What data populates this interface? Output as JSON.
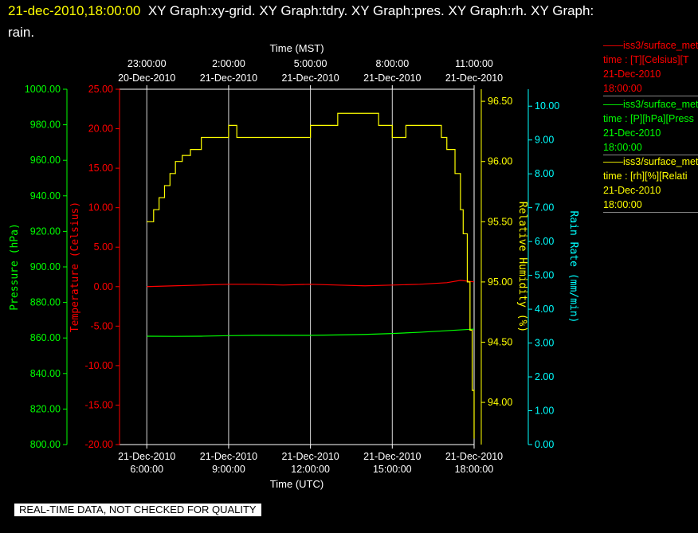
{
  "header": {
    "timestamp": "21-dec-2010,18:00:00",
    "graph_names": "XY Graph:xy-grid.  XY Graph:tdry.  XY Graph:pres.  XY Graph:rh.  XY Graph:",
    "graph_names_cont": "rain."
  },
  "legend": [
    {
      "line1": "iss3/surface_met",
      "line2": "time : [T][Celsius][T",
      "line3": "21-Dec-2010",
      "line4": "18:00:00",
      "color": "#ff0000"
    },
    {
      "line1": "iss3/surface_met",
      "line2": "time : [P][hPa][Press",
      "line3": "21-Dec-2010",
      "line4": "18:00:00",
      "color": "#00ff00"
    },
    {
      "line1": "iss3/surface_met",
      "line2": "time : [rh][%][Relati",
      "line3": "21-Dec-2010",
      "line4": "18:00:00",
      "color": "#ffff00"
    }
  ],
  "quality_note": "REAL-TIME DATA, NOT CHECKED FOR QUALITY",
  "colors": {
    "background": "#000000",
    "grid": "#ffffff",
    "temperature": "#ff0000",
    "pressure": "#00ff00",
    "humidity": "#ffff00",
    "rain": "#00ffff",
    "header_time": "#ffff00"
  },
  "chart_data": {
    "type": "line",
    "grid": true,
    "x_bottom": {
      "label": "Time (UTC)",
      "range": [
        "2010-12-21 05:00",
        "2010-12-21 18:00"
      ],
      "ticks": [
        {
          "date": "21-Dec-2010",
          "time": "6:00:00"
        },
        {
          "date": "21-Dec-2010",
          "time": "9:00:00"
        },
        {
          "date": "21-Dec-2010",
          "time": "12:00:00"
        },
        {
          "date": "21-Dec-2010",
          "time": "15:00:00"
        },
        {
          "date": "21-Dec-2010",
          "time": "18:00:00"
        }
      ]
    },
    "x_top": {
      "label": "Time (MST)",
      "ticks": [
        {
          "time": "23:00:00",
          "date": "20-Dec-2010"
        },
        {
          "time": "2:00:00",
          "date": "21-Dec-2010"
        },
        {
          "time": "5:00:00",
          "date": "21-Dec-2010"
        },
        {
          "time": "8:00:00",
          "date": "21-Dec-2010"
        },
        {
          "time": "11:00:00",
          "date": "21-Dec-2010"
        }
      ]
    },
    "axes": {
      "pressure": {
        "label": "Pressure (hPa)",
        "range": [
          800,
          1000
        ],
        "ticks": [
          "800.00",
          "820.00",
          "840.00",
          "860.00",
          "880.00",
          "900.00",
          "920.00",
          "940.00",
          "960.00",
          "980.00",
          "1000.00"
        ]
      },
      "temperature": {
        "label": "Temperature (Celsius)",
        "range": [
          -20,
          25
        ],
        "ticks": [
          "-20.00",
          "-15.00",
          "-10.00",
          "-5.00",
          "0.00",
          "5.00",
          "10.00",
          "15.00",
          "20.00",
          "25.00"
        ]
      },
      "humidity": {
        "label": "Relative Humidity (%)",
        "range": [
          93.65,
          96.6
        ],
        "ticks": [
          "94.00",
          "94.50",
          "95.00",
          "95.50",
          "96.00",
          "96.50"
        ]
      },
      "rain": {
        "label": "Rain Rate (mm/min)",
        "range": [
          0,
          10.5
        ],
        "ticks": [
          "0.00",
          "1.00",
          "2.00",
          "3.00",
          "4.00",
          "5.00",
          "6.00",
          "7.00",
          "8.00",
          "9.00",
          "10.00"
        ]
      }
    },
    "series": [
      {
        "name": "iss3/surface_met T",
        "axis": "temperature",
        "color": "#ff0000",
        "x_hours": [
          6,
          7,
          8,
          9,
          10,
          11,
          12,
          13,
          14,
          15,
          16,
          17,
          17.5,
          18
        ],
        "values": [
          0.0,
          0.1,
          0.2,
          0.3,
          0.3,
          0.2,
          0.3,
          0.2,
          0.1,
          0.2,
          0.3,
          0.5,
          0.8,
          0.6
        ]
      },
      {
        "name": "iss3/surface_met P",
        "axis": "pressure",
        "color": "#00ff00",
        "x_hours": [
          6,
          7,
          8,
          9,
          10,
          11,
          12,
          13,
          14,
          15,
          16,
          17,
          18
        ],
        "values": [
          861.0,
          860.9,
          861.0,
          861.3,
          861.5,
          861.5,
          861.5,
          861.7,
          862.0,
          862.5,
          863.2,
          864.1,
          865.0
        ]
      },
      {
        "name": "iss3/surface_met rh",
        "axis": "humidity",
        "color": "#ffff00",
        "x_hours": [
          6,
          6.25,
          6.45,
          6.65,
          6.85,
          7.05,
          7.3,
          7.6,
          8.0,
          8.5,
          9.0,
          9.3,
          10.0,
          11.0,
          12.0,
          12.5,
          13.0,
          13.6,
          14.0,
          14.5,
          15.0,
          15.5,
          16.0,
          16.8,
          17.0,
          17.3,
          17.5,
          17.6,
          17.75,
          17.85,
          17.93,
          18.0
        ],
        "values": [
          95.5,
          95.6,
          95.7,
          95.8,
          95.9,
          96.0,
          96.05,
          96.1,
          96.2,
          96.2,
          96.3,
          96.2,
          96.2,
          96.2,
          96.3,
          96.3,
          96.4,
          96.4,
          96.4,
          96.3,
          96.2,
          96.3,
          96.3,
          96.2,
          96.1,
          95.9,
          95.6,
          95.4,
          95.0,
          94.6,
          94.1,
          93.7
        ]
      }
    ]
  }
}
